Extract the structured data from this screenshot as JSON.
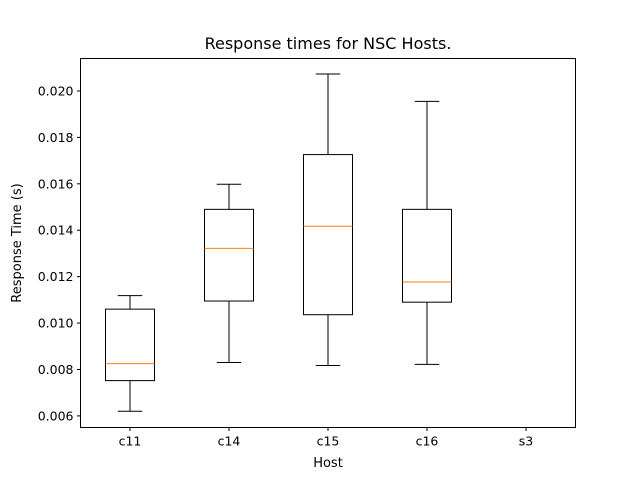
{
  "chart_data": {
    "type": "box",
    "title": "Response times for NSC Hosts.",
    "xlabel": "Host",
    "ylabel": "Response Time (s)",
    "ylim": [
      0.0055,
      0.0214
    ],
    "yticks": [
      "0.006",
      "0.008",
      "0.010",
      "0.012",
      "0.014",
      "0.016",
      "0.018",
      "0.020"
    ],
    "grid": false,
    "categories": [
      "c11",
      "c14",
      "c15",
      "c16",
      "s3"
    ],
    "boxes": [
      {
        "host": "c11",
        "whisker_low": 0.0062,
        "q1": 0.00752,
        "median": 0.00825,
        "q3": 0.0106,
        "whisker_high": 0.01118
      },
      {
        "host": "c14",
        "whisker_low": 0.0083,
        "q1": 0.01095,
        "median": 0.01322,
        "q3": 0.0149,
        "whisker_high": 0.01598
      },
      {
        "host": "c15",
        "whisker_low": 0.00817,
        "q1": 0.01036,
        "median": 0.01417,
        "q3": 0.01726,
        "whisker_high": 0.02073
      },
      {
        "host": "c16",
        "whisker_low": 0.00822,
        "q1": 0.0109,
        "median": 0.01177,
        "q3": 0.0149,
        "whisker_high": 0.01955
      },
      {
        "host": "s3",
        "whisker_low": null,
        "q1": null,
        "median": null,
        "q3": null,
        "whisker_high": null
      }
    ],
    "colors": {
      "box": "#000000",
      "median": "#ff7f0e"
    }
  }
}
